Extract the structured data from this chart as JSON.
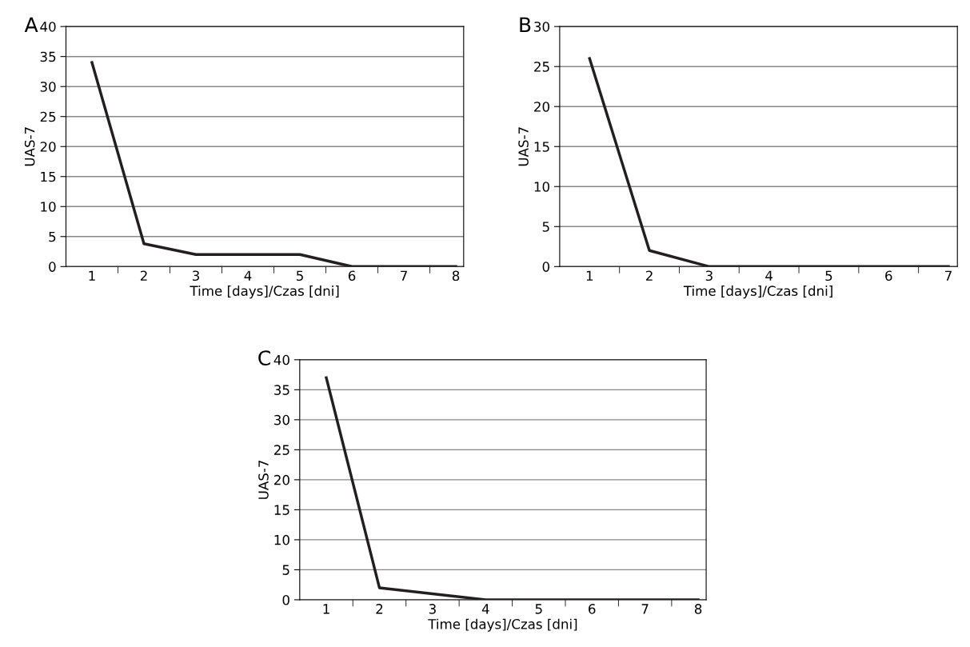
{
  "chart_data": [
    {
      "type": "line",
      "title": "A",
      "xlabel": "Time [days]/Czas [dni]",
      "ylabel": "UAS-7",
      "categories": [
        "1",
        "2",
        "3",
        "4",
        "5",
        "6",
        "7",
        "8"
      ],
      "values": [
        34,
        3.8,
        2,
        2,
        2,
        0,
        0,
        0
      ],
      "color": "#231f20",
      "ylim": [
        0,
        40
      ],
      "yticks": [
        0,
        5,
        10,
        15,
        20,
        25,
        30,
        35,
        40
      ],
      "grid": "y",
      "line_style": "solid",
      "marker": "none"
    },
    {
      "type": "line",
      "title": "B",
      "xlabel": "Time [days]/Czas [dni]",
      "ylabel": "UAS-7",
      "categories": [
        "1",
        "2",
        "3",
        "4",
        "5",
        "6",
        "7"
      ],
      "values": [
        26,
        2,
        0,
        0,
        0,
        0,
        0
      ],
      "color": "#231f20",
      "ylim": [
        0,
        30
      ],
      "yticks": [
        0,
        5,
        10,
        15,
        20,
        25,
        30
      ],
      "grid": "y",
      "line_style": "solid",
      "marker": "none"
    },
    {
      "type": "line",
      "title": "C",
      "xlabel": "Time [days]/Czas [dni]",
      "ylabel": "UAS-7",
      "categories": [
        "1",
        "2",
        "3",
        "4",
        "5",
        "6",
        "7",
        "8"
      ],
      "values": [
        37,
        2,
        1,
        0,
        0,
        0,
        0,
        0
      ],
      "color": "#231f20",
      "ylim": [
        0,
        40
      ],
      "yticks": [
        0,
        5,
        10,
        15,
        20,
        25,
        30,
        35,
        40
      ],
      "grid": "y",
      "line_style": "solid",
      "marker": "none"
    }
  ]
}
